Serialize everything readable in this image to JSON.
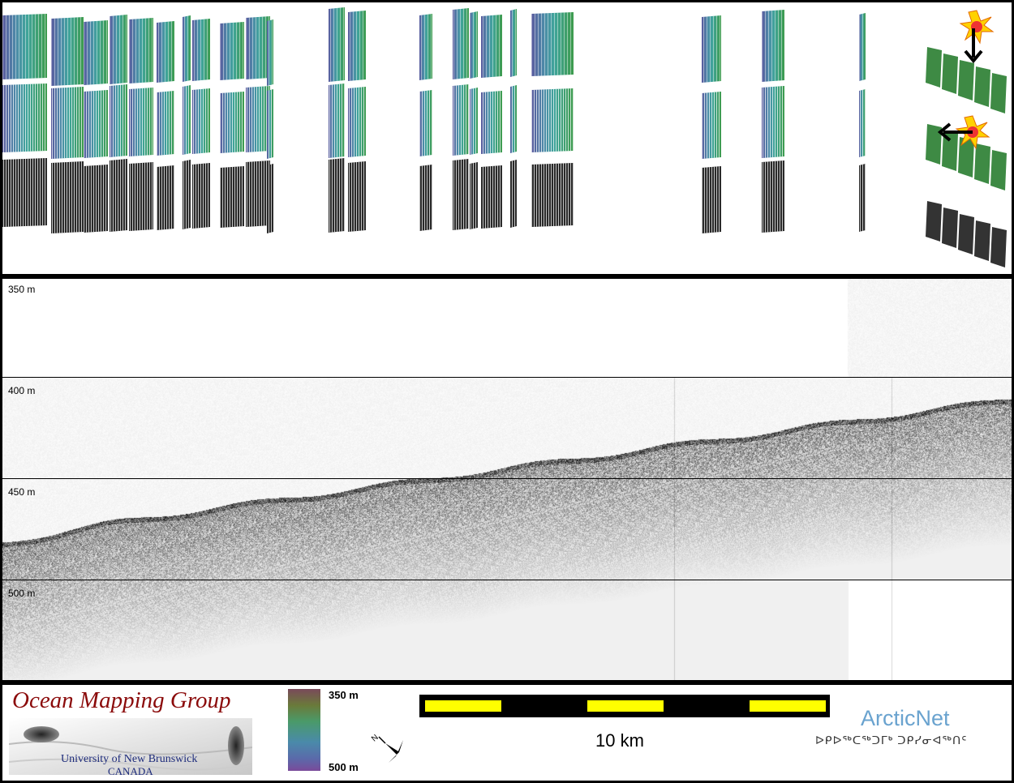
{
  "profile": {
    "depth_labels": [
      "350 m",
      "400 m",
      "450 m",
      "500 m"
    ]
  },
  "logo": {
    "title": "Ocean Mapping Group",
    "university": "University of New Brunswick",
    "country": "CANADA"
  },
  "colorbar": {
    "top_label": "350 m",
    "bottom_label": "500 m"
  },
  "scale_bar": {
    "label": "10 km",
    "colors": {
      "fill": "#ffff00",
      "gap": "#000000"
    }
  },
  "compass": {
    "label": "N"
  },
  "partner": {
    "name": "ArcticNet",
    "syllabics": "ᐅᑭᐅᖅᑕᖅᑐᒥᒃ ᑐᑭᓯᓂᐊᖅᑎᑦ"
  },
  "colors": {
    "omg_title": "#8b0b0b",
    "omg_subtitle": "#1c2a7a",
    "arcticnet": "#6aa3cf",
    "highlight_arrow": "#000000"
  }
}
